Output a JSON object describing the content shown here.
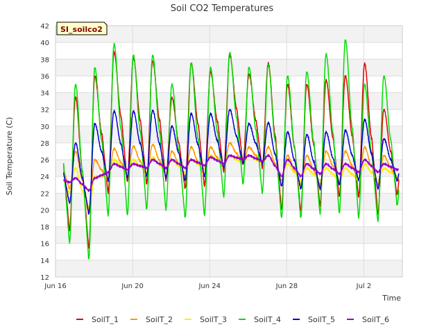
{
  "chart_data": {
    "type": "line",
    "title": "Soil CO2 Temperatures",
    "xlabel": "Time",
    "ylabel": "Soil Temperature (C)",
    "site_label": "SI_soilco2",
    "x_range": [
      "2024-06-16",
      "2024-07-04T00:00"
    ],
    "ylim": [
      12,
      42
    ],
    "yticks": [
      12,
      14,
      16,
      18,
      20,
      22,
      24,
      26,
      28,
      30,
      32,
      34,
      36,
      38,
      40,
      42
    ],
    "xticks": [
      {
        "date": "2024-06-16",
        "label": "Jun 16"
      },
      {
        "date": "2024-06-20",
        "label": "Jun 20"
      },
      {
        "date": "2024-06-24",
        "label": "Jun 24"
      },
      {
        "date": "2024-06-28",
        "label": "Jun 28"
      },
      {
        "date": "2024-07-02",
        "label": "Jul 2"
      }
    ],
    "grid": true,
    "legend_position": "bottom",
    "days": [
      "Jun 16",
      "Jun 17",
      "Jun 18",
      "Jun 19",
      "Jun 20",
      "Jun 21",
      "Jun 22",
      "Jun 23",
      "Jun 24",
      "Jun 25",
      "Jun 26",
      "Jun 27",
      "Jun 28",
      "Jun 29",
      "Jun 30",
      "Jul 1",
      "Jul 2",
      "Jul 3"
    ],
    "series": [
      {
        "name": "SoilT_1",
        "color": "#dd0000",
        "daily_max": [
          33.5,
          36.0,
          38.8,
          38.2,
          37.8,
          33.4,
          37.5,
          36.5,
          38.5,
          36.2,
          37.5,
          35.0,
          35.0,
          35.5,
          36.0,
          37.5,
          32.0,
          31.0
        ],
        "daily_min": [
          17.5,
          15.3,
          22.0,
          23.3,
          23.0,
          23.5,
          22.5,
          22.8,
          24.5,
          25.5,
          25.0,
          20.0,
          19.8,
          20.5,
          21.5,
          21.5,
          19.5,
          21.8
        ]
      },
      {
        "name": "SoilT_2",
        "color": "#ff9900",
        "daily_max": [
          27.0,
          26.0,
          27.3,
          27.6,
          27.8,
          27.0,
          27.5,
          27.5,
          28.0,
          27.5,
          27.5,
          26.5,
          26.5,
          27.0,
          27.0,
          27.5,
          26.5,
          25.5
        ],
        "daily_min": [
          22.5,
          20.0,
          23.5,
          24.0,
          24.0,
          24.0,
          24.0,
          24.0,
          25.0,
          25.5,
          25.5,
          23.5,
          23.0,
          23.0,
          23.5,
          23.5,
          23.0,
          23.5
        ]
      },
      {
        "name": "SoilT_3",
        "color": "#ffee00",
        "daily_max": [
          25.0,
          24.0,
          26.0,
          26.0,
          26.3,
          26.0,
          26.0,
          26.5,
          26.5,
          26.5,
          26.5,
          25.5,
          25.0,
          25.0,
          25.0,
          25.5,
          25.0,
          24.5
        ],
        "daily_min": [
          22.0,
          19.5,
          24.0,
          24.5,
          24.5,
          24.5,
          24.5,
          25.0,
          25.5,
          25.5,
          25.5,
          24.0,
          23.5,
          23.5,
          23.5,
          23.5,
          23.5,
          24.0
        ]
      },
      {
        "name": "SoilT_4",
        "color": "#00dd00",
        "daily_max": [
          35.0,
          37.0,
          39.8,
          38.5,
          38.5,
          35.0,
          37.5,
          37.0,
          38.8,
          37.0,
          37.3,
          36.0,
          36.5,
          38.6,
          40.3,
          35.0,
          36.0,
          30.0
        ],
        "daily_min": [
          16.0,
          14.0,
          19.3,
          19.3,
          20.0,
          20.0,
          19.0,
          19.3,
          21.5,
          23.0,
          22.0,
          19.0,
          19.0,
          19.5,
          19.5,
          19.0,
          18.6,
          20.5
        ]
      },
      {
        "name": "SoilT_5",
        "color": "#0000cc",
        "daily_max": [
          28.0,
          30.3,
          31.8,
          31.8,
          31.9,
          30.0,
          31.5,
          31.5,
          32.0,
          30.3,
          30.4,
          29.3,
          29.0,
          29.3,
          29.5,
          30.8,
          28.5,
          28.0
        ],
        "daily_min": [
          20.8,
          19.5,
          23.5,
          23.8,
          24.0,
          23.8,
          23.5,
          24.0,
          25.0,
          25.5,
          25.5,
          22.8,
          22.5,
          22.5,
          23.0,
          23.5,
          22.5,
          23.5
        ]
      },
      {
        "name": "SoilT_6",
        "color": "#9900cc",
        "daily_max": [
          23.8,
          23.8,
          25.5,
          25.5,
          26.0,
          26.0,
          26.0,
          26.3,
          26.5,
          26.5,
          26.5,
          26.0,
          25.5,
          25.5,
          25.5,
          26.0,
          25.5,
          25.3
        ],
        "daily_min": [
          23.3,
          22.3,
          24.5,
          24.8,
          25.0,
          25.0,
          25.0,
          25.3,
          25.5,
          26.0,
          25.8,
          24.0,
          24.0,
          24.3,
          24.3,
          24.5,
          24.5,
          24.8
        ]
      }
    ]
  }
}
